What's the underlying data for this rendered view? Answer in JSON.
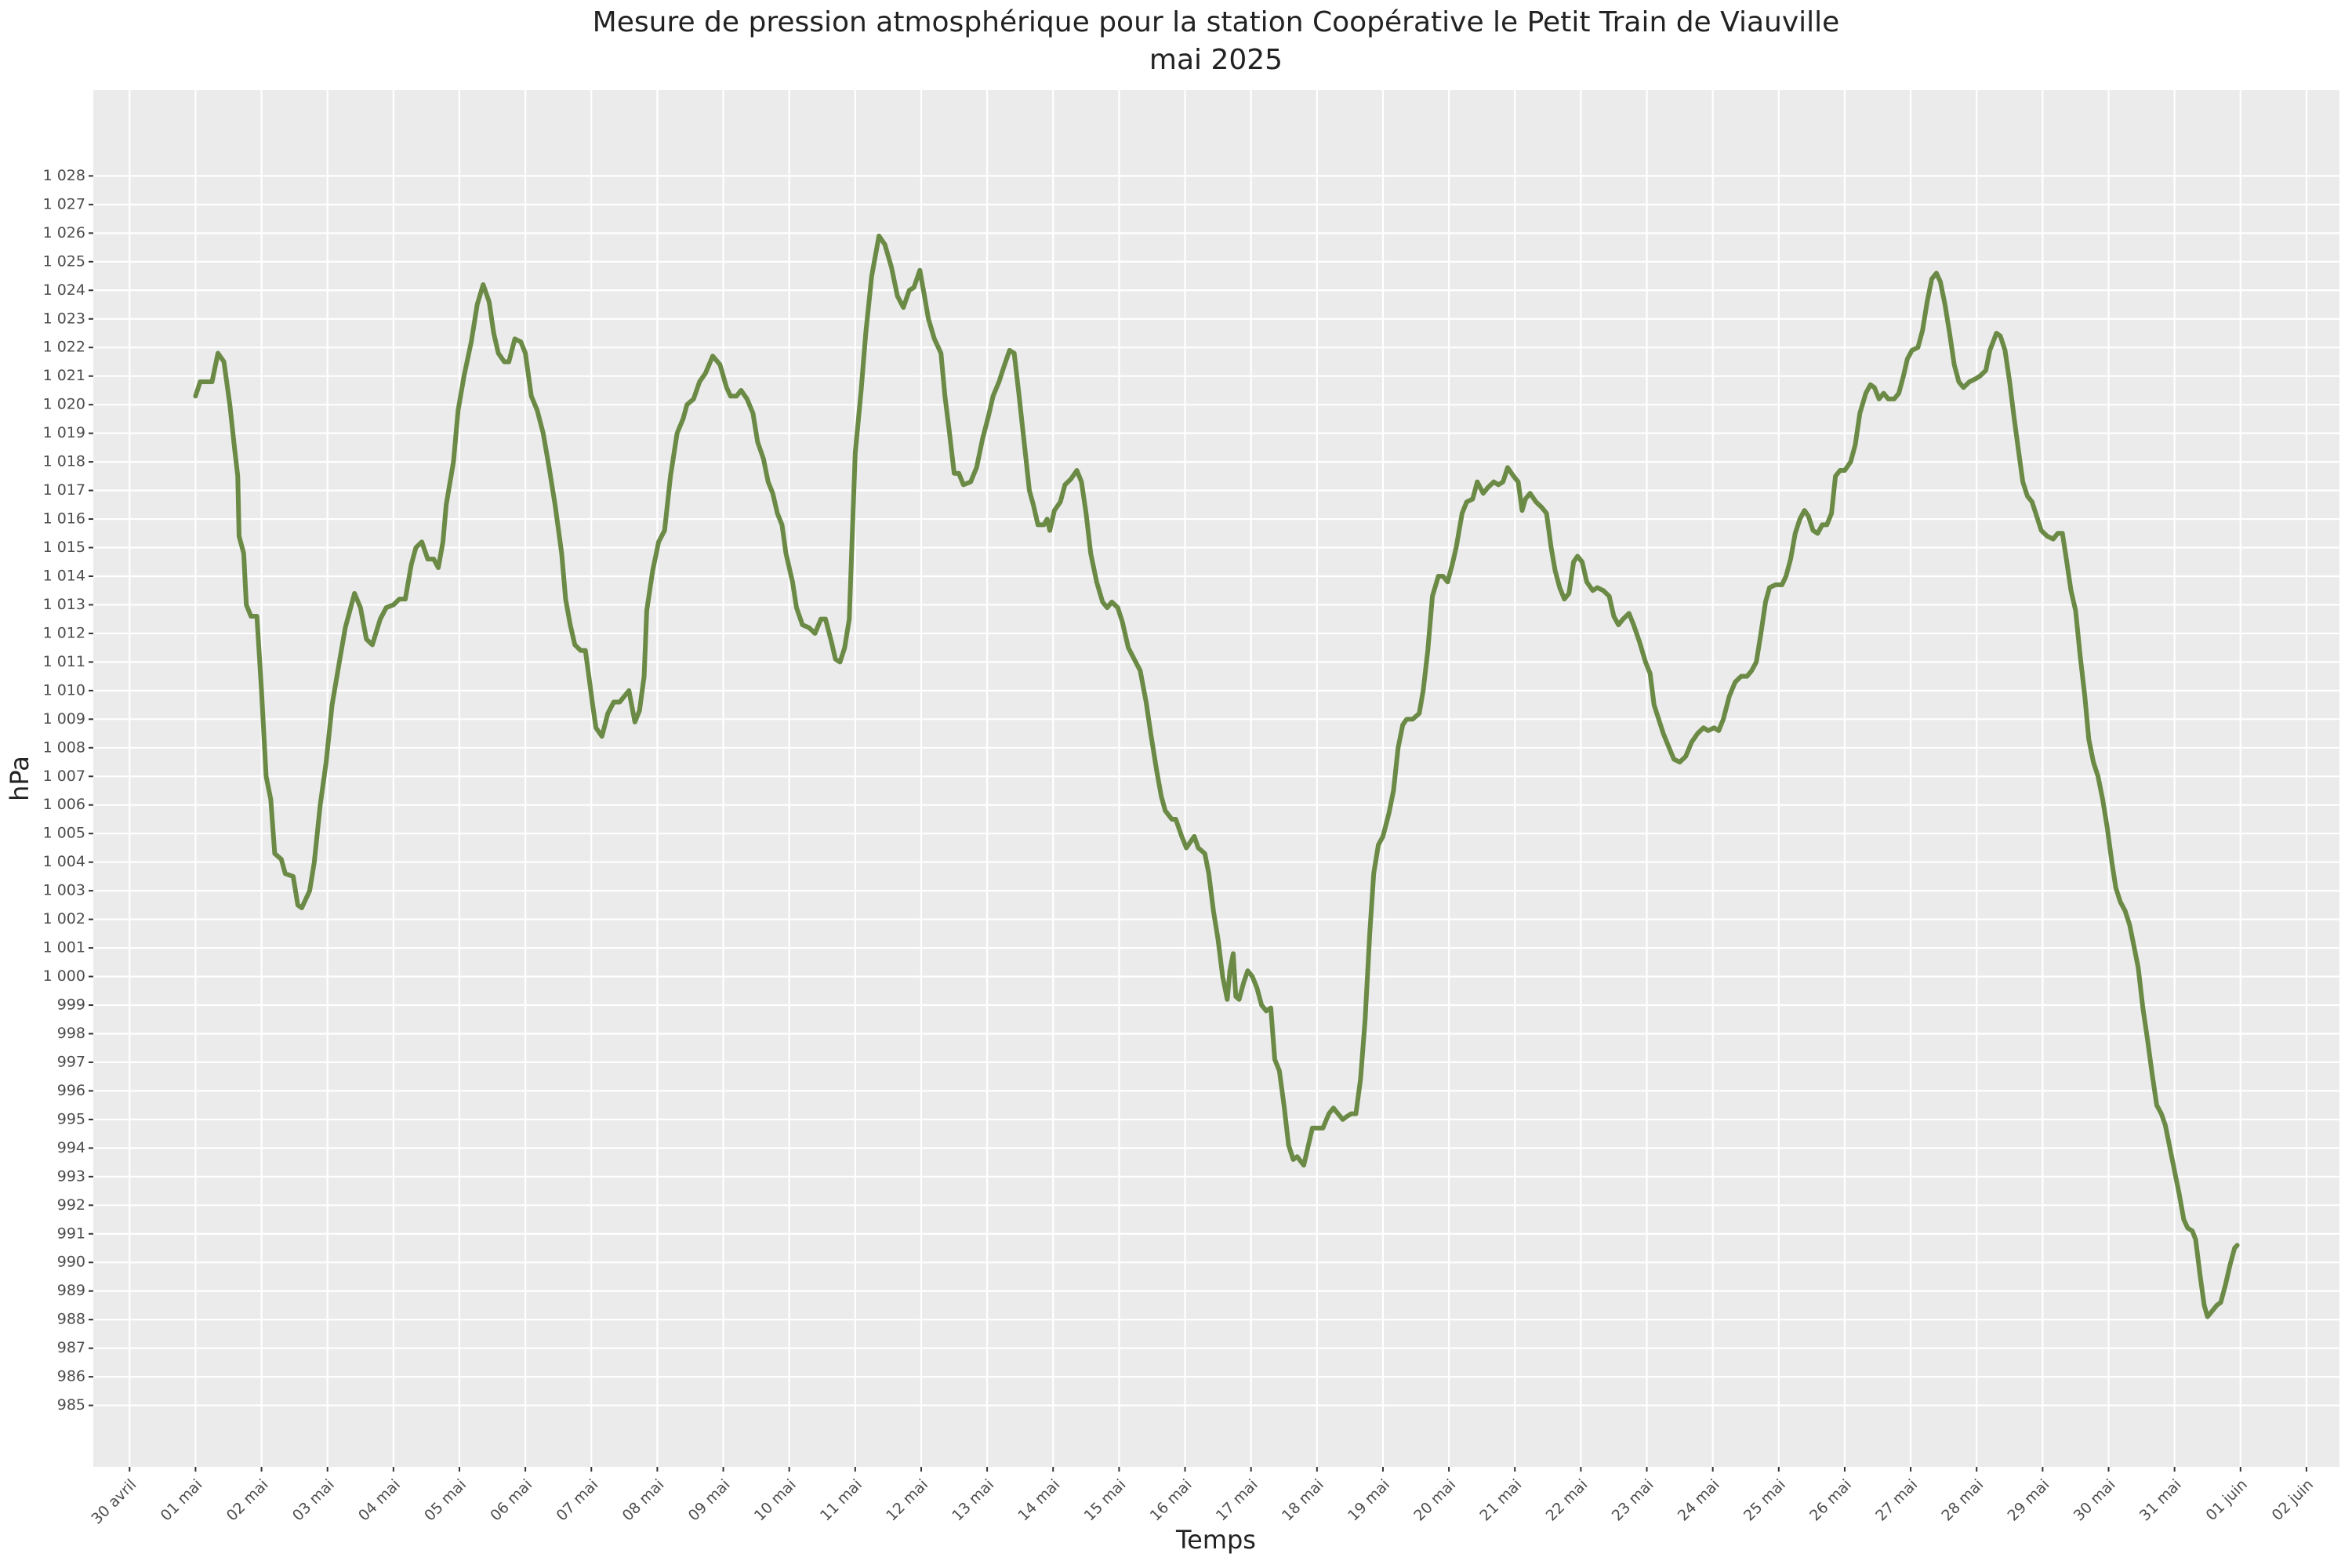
{
  "chart_data": {
    "type": "line",
    "title": "Mesure de pression atmosphérique pour la station Coopérative le Petit Train de Viauville",
    "subtitle": "mai 2025",
    "xlabel": "Temps",
    "ylabel": "hPa",
    "color": "#6b8a45",
    "grid": true,
    "xlim": [
      -1.55,
      32.5
    ],
    "ylim": [
      982.85,
      1031
    ],
    "xticks": [
      {
        "value": -1,
        "label": "30 avril"
      },
      {
        "value": 0,
        "label": "01 mai"
      },
      {
        "value": 1,
        "label": "02 mai"
      },
      {
        "value": 2,
        "label": "03 mai"
      },
      {
        "value": 3,
        "label": "04 mai"
      },
      {
        "value": 4,
        "label": "05 mai"
      },
      {
        "value": 5,
        "label": "06 mai"
      },
      {
        "value": 6,
        "label": "07 mai"
      },
      {
        "value": 7,
        "label": "08 mai"
      },
      {
        "value": 8,
        "label": "09 mai"
      },
      {
        "value": 9,
        "label": "10 mai"
      },
      {
        "value": 10,
        "label": "11 mai"
      },
      {
        "value": 11,
        "label": "12 mai"
      },
      {
        "value": 12,
        "label": "13 mai"
      },
      {
        "value": 13,
        "label": "14 mai"
      },
      {
        "value": 14,
        "label": "15 mai"
      },
      {
        "value": 15,
        "label": "16 mai"
      },
      {
        "value": 16,
        "label": "17 mai"
      },
      {
        "value": 17,
        "label": "18 mai"
      },
      {
        "value": 18,
        "label": "19 mai"
      },
      {
        "value": 19,
        "label": "20 mai"
      },
      {
        "value": 20,
        "label": "21 mai"
      },
      {
        "value": 21,
        "label": "22 mai"
      },
      {
        "value": 22,
        "label": "23 mai"
      },
      {
        "value": 23,
        "label": "24 mai"
      },
      {
        "value": 24,
        "label": "25 mai"
      },
      {
        "value": 25,
        "label": "26 mai"
      },
      {
        "value": 26,
        "label": "27 mai"
      },
      {
        "value": 27,
        "label": "28 mai"
      },
      {
        "value": 28,
        "label": "29 mai"
      },
      {
        "value": 29,
        "label": "30 mai"
      },
      {
        "value": 30,
        "label": "31 mai"
      },
      {
        "value": 31,
        "label": "01 juin"
      },
      {
        "value": 32,
        "label": "02 juin"
      }
    ],
    "yticks": [
      985,
      986,
      987,
      988,
      989,
      990,
      991,
      992,
      993,
      994,
      995,
      996,
      997,
      998,
      999,
      {
        "value": 1000,
        "label": "1 000"
      },
      {
        "value": 1001,
        "label": "1 001"
      },
      {
        "value": 1002,
        "label": "1 002"
      },
      {
        "value": 1003,
        "label": "1 003"
      },
      {
        "value": 1004,
        "label": "1 004"
      },
      {
        "value": 1005,
        "label": "1 005"
      },
      {
        "value": 1006,
        "label": "1 006"
      },
      {
        "value": 1007,
        "label": "1 007"
      },
      {
        "value": 1008,
        "label": "1 008"
      },
      {
        "value": 1009,
        "label": "1 009"
      },
      {
        "value": 1010,
        "label": "1 010"
      },
      {
        "value": 1011,
        "label": "1 011"
      },
      {
        "value": 1012,
        "label": "1 012"
      },
      {
        "value": 1013,
        "label": "1 013"
      },
      {
        "value": 1014,
        "label": "1 014"
      },
      {
        "value": 1015,
        "label": "1 015"
      },
      {
        "value": 1016,
        "label": "1 016"
      },
      {
        "value": 1017,
        "label": "1 017"
      },
      {
        "value": 1018,
        "label": "1 018"
      },
      {
        "value": 1019,
        "label": "1 019"
      },
      {
        "value": 1020,
        "label": "1 020"
      },
      {
        "value": 1021,
        "label": "1 021"
      },
      {
        "value": 1022,
        "label": "1 022"
      },
      {
        "value": 1023,
        "label": "1 023"
      },
      {
        "value": 1024,
        "label": "1 024"
      },
      {
        "value": 1025,
        "label": "1 025"
      },
      {
        "value": 1026,
        "label": "1 026"
      },
      {
        "value": 1027,
        "label": "1 027"
      },
      {
        "value": 1028,
        "label": "1 028"
      }
    ],
    "x": [
      0.0,
      0.07,
      0.25,
      0.34,
      0.43,
      0.52,
      0.59,
      0.64,
      0.66,
      0.73,
      0.77,
      0.84,
      0.93,
      1.0,
      1.07,
      1.14,
      1.2,
      1.3,
      1.36,
      1.48,
      1.55,
      1.61,
      1.73,
      1.8,
      1.89,
      1.98,
      2.07,
      2.18,
      2.27,
      2.41,
      2.5,
      2.59,
      2.68,
      2.8,
      2.89,
      3.0,
      3.09,
      3.18,
      3.27,
      3.34,
      3.43,
      3.52,
      3.61,
      3.68,
      3.75,
      3.8,
      3.91,
      3.98,
      4.07,
      4.18,
      4.27,
      4.36,
      4.45,
      4.52,
      4.59,
      4.68,
      4.75,
      4.84,
      4.93,
      5.0,
      5.09,
      5.18,
      5.27,
      5.36,
      5.45,
      5.55,
      5.61,
      5.68,
      5.75,
      5.84,
      5.91,
      5.98,
      6.02,
      6.07,
      6.16,
      6.25,
      6.34,
      6.43,
      6.5,
      6.57,
      6.66,
      6.73,
      6.8,
      6.84,
      6.93,
      7.02,
      7.11,
      7.2,
      7.3,
      7.39,
      7.45,
      7.55,
      7.64,
      7.73,
      7.84,
      7.95,
      8.05,
      8.11,
      8.2,
      8.27,
      8.36,
      8.45,
      8.52,
      8.61,
      8.68,
      8.75,
      8.82,
      8.89,
      8.95,
      9.05,
      9.11,
      9.2,
      9.3,
      9.39,
      9.48,
      9.55,
      9.64,
      9.7,
      9.77,
      9.84,
      9.91,
      10.0,
      10.09,
      10.16,
      10.25,
      10.36,
      10.45,
      10.55,
      10.64,
      10.73,
      10.82,
      10.89,
      10.98,
      11.05,
      11.11,
      11.2,
      11.3,
      11.36,
      11.43,
      11.5,
      11.57,
      11.64,
      11.75,
      11.84,
      11.93,
      12.02,
      12.09,
      12.18,
      12.25,
      12.34,
      12.41,
      12.48,
      12.57,
      12.64,
      12.7,
      12.77,
      12.86,
      12.91,
      12.95,
      13.02,
      13.11,
      13.18,
      13.27,
      13.36,
      13.43,
      13.5,
      13.57,
      13.66,
      13.75,
      13.82,
      13.89,
      13.98,
      14.05,
      14.14,
      14.23,
      14.32,
      14.41,
      14.48,
      14.57,
      14.64,
      14.7,
      14.8,
      14.86,
      14.95,
      15.02,
      15.14,
      15.2,
      15.3,
      15.36,
      15.43,
      15.5,
      15.57,
      15.64,
      15.68,
      15.73,
      15.77,
      15.82,
      15.89,
      15.95,
      16.02,
      16.09,
      16.16,
      16.23,
      16.3,
      16.36,
      16.43,
      16.5,
      16.57,
      16.64,
      16.7,
      16.8,
      16.86,
      16.93,
      17.02,
      17.09,
      17.18,
      17.25,
      17.32,
      17.39,
      17.45,
      17.52,
      17.59,
      17.66,
      17.73,
      17.8,
      17.86,
      17.93,
      18.0,
      18.09,
      18.16,
      18.23,
      18.3,
      18.36,
      18.45,
      18.55,
      18.61,
      18.68,
      18.75,
      18.84,
      18.91,
      18.98,
      19.05,
      19.11,
      19.2,
      19.27,
      19.36,
      19.43,
      19.52,
      19.59,
      19.68,
      19.75,
      19.82,
      19.89,
      19.98,
      20.05,
      20.11,
      20.16,
      20.23,
      20.32,
      20.41,
      20.48,
      20.55,
      20.61,
      20.68,
      20.75,
      20.82,
      20.89,
      20.95,
      21.02,
      21.09,
      21.18,
      21.25,
      21.34,
      21.43,
      21.5,
      21.57,
      21.64,
      21.73,
      21.8,
      21.89,
      21.98,
      22.05,
      22.11,
      22.18,
      22.25,
      22.32,
      22.41,
      22.5,
      22.59,
      22.68,
      22.77,
      22.86,
      22.93,
      23.02,
      23.09,
      23.16,
      23.25,
      23.34,
      23.43,
      23.52,
      23.59,
      23.66,
      23.73,
      23.8,
      23.86,
      23.95,
      24.05,
      24.11,
      24.18,
      24.25,
      24.32,
      24.39,
      24.45,
      24.52,
      24.59,
      24.66,
      24.73,
      24.8,
      24.86,
      24.93,
      25.0,
      25.09,
      25.16,
      25.23,
      25.32,
      25.39,
      25.45,
      25.52,
      25.59,
      25.66,
      25.75,
      25.82,
      25.89,
      25.95,
      26.02,
      26.11,
      26.18,
      26.25,
      26.32,
      26.39,
      26.45,
      26.52,
      26.59,
      26.66,
      26.73,
      26.8,
      26.89,
      26.98,
      27.05,
      27.14,
      27.2,
      27.3,
      27.36,
      27.43,
      27.5,
      27.57,
      27.64,
      27.7,
      27.77,
      27.84,
      27.91,
      27.98,
      28.07,
      28.16,
      28.23,
      28.3,
      28.36,
      28.43,
      28.5,
      28.57,
      28.64,
      28.7,
      28.77,
      28.84,
      28.91,
      28.98,
      29.05,
      29.11,
      29.18,
      29.25,
      29.32,
      29.39,
      29.45,
      29.52,
      29.59,
      29.66,
      29.73,
      29.8,
      29.86,
      29.93,
      30.0,
      30.07,
      30.14,
      30.2,
      30.27,
      30.32,
      30.39,
      30.45,
      30.5,
      30.57,
      30.64,
      30.7,
      30.77,
      30.84,
      30.91,
      30.95
    ],
    "values": [
      1020.3,
      1020.8,
      1020.8,
      1021.8,
      1021.5,
      1020,
      1018.5,
      1017.5,
      1015.4,
      1014.8,
      1013,
      1012.6,
      1012.6,
      1010,
      1007,
      1006.2,
      1004.3,
      1004.1,
      1003.6,
      1003.5,
      1002.5,
      1002.4,
      1003,
      1004,
      1006,
      1007.5,
      1009.5,
      1011,
      1012.2,
      1013.4,
      1012.9,
      1011.8,
      1011.6,
      1012.5,
      1012.9,
      1013,
      1013.2,
      1013.2,
      1014.4,
      1015,
      1015.2,
      1014.6,
      1014.6,
      1014.3,
      1015.2,
      1016.5,
      1018,
      1019.8,
      1021,
      1022.2,
      1023.5,
      1024.2,
      1023.6,
      1022.5,
      1021.8,
      1021.5,
      1021.5,
      1022.3,
      1022.2,
      1021.8,
      1020.3,
      1019.8,
      1019,
      1017.8,
      1016.5,
      1014.8,
      1013.2,
      1012.3,
      1011.6,
      1011.4,
      1011.4,
      1010.2,
      1009.5,
      1008.7,
      1008.4,
      1009.2,
      1009.6,
      1009.6,
      1009.8,
      1010,
      1008.9,
      1009.3,
      1010.5,
      1012.8,
      1014.2,
      1015.2,
      1015.6,
      1017.5,
      1019,
      1019.5,
      1020,
      1020.2,
      1020.8,
      1021.1,
      1021.7,
      1021.4,
      1020.6,
      1020.3,
      1020.3,
      1020.5,
      1020.2,
      1019.7,
      1018.7,
      1018.1,
      1017.3,
      1016.9,
      1016.2,
      1015.8,
      1014.8,
      1013.8,
      1012.9,
      1012.3,
      1012.2,
      1012,
      1012.5,
      1012.5,
      1011.7,
      1011.1,
      1011,
      1011.5,
      1012.5,
      1018.3,
      1020.5,
      1022.5,
      1024.5,
      1025.9,
      1025.6,
      1024.8,
      1023.8,
      1023.4,
      1024,
      1024.1,
      1024.7,
      1023.8,
      1023,
      1022.3,
      1021.8,
      1020.3,
      1019,
      1017.6,
      1017.6,
      1017.2,
      1017.3,
      1017.8,
      1018.8,
      1019.6,
      1020.3,
      1020.8,
      1021.3,
      1021.9,
      1021.8,
      1020.4,
      1018.5,
      1017,
      1016.5,
      1015.8,
      1015.8,
      1016,
      1015.6,
      1016.3,
      1016.6,
      1017.2,
      1017.4,
      1017.7,
      1017.3,
      1016.2,
      1014.8,
      1013.8,
      1013.1,
      1012.9,
      1013.1,
      1012.9,
      1012.4,
      1011.5,
      1011.1,
      1010.7,
      1009.6,
      1008.5,
      1007.2,
      1006.3,
      1005.8,
      1005.5,
      1005.5,
      1004.9,
      1004.5,
      1004.9,
      1004.5,
      1004.3,
      1003.6,
      1002.3,
      1001.3,
      1000,
      999.2,
      1000.2,
      1000.8,
      999.3,
      999.2,
      999.8,
      1000.2,
      1000,
      999.6,
      999,
      998.8,
      998.9,
      997.1,
      996.7,
      995.5,
      994.1,
      993.6,
      993.7,
      993.4,
      994,
      994.7,
      994.7,
      994.7,
      995.2,
      995.4,
      995.2,
      995,
      995.1,
      995.2,
      995.2,
      996.4,
      998.5,
      1001.5,
      1003.6,
      1004.6,
      1004.9,
      1005.7,
      1006.5,
      1008,
      1008.8,
      1009,
      1009,
      1009.2,
      1010,
      1011.4,
      1013.3,
      1014,
      1014,
      1013.8,
      1014.4,
      1015,
      1016.2,
      1016.6,
      1016.7,
      1017.3,
      1016.9,
      1017.1,
      1017.3,
      1017.2,
      1017.3,
      1017.8,
      1017.5,
      1017.3,
      1016.3,
      1016.7,
      1016.9,
      1016.6,
      1016.4,
      1016.2,
      1015,
      1014.2,
      1013.6,
      1013.2,
      1013.4,
      1014.5,
      1014.7,
      1014.5,
      1013.8,
      1013.5,
      1013.6,
      1013.5,
      1013.3,
      1012.6,
      1012.3,
      1012.5,
      1012.7,
      1012.3,
      1011.7,
      1011,
      1010.6,
      1009.5,
      1009,
      1008.5,
      1008.1,
      1007.6,
      1007.5,
      1007.7,
      1008.2,
      1008.5,
      1008.7,
      1008.6,
      1008.7,
      1008.6,
      1009,
      1009.8,
      1010.3,
      1010.5,
      1010.5,
      1010.7,
      1011,
      1012,
      1013.1,
      1013.6,
      1013.7,
      1013.7,
      1014,
      1014.6,
      1015.5,
      1016,
      1016.3,
      1016.1,
      1015.6,
      1015.5,
      1015.8,
      1015.8,
      1016.2,
      1017.5,
      1017.7,
      1017.7,
      1018,
      1018.6,
      1019.7,
      1020.4,
      1020.7,
      1020.6,
      1020.2,
      1020.4,
      1020.2,
      1020.2,
      1020.4,
      1021,
      1021.6,
      1021.9,
      1022,
      1022.6,
      1023.6,
      1024.4,
      1024.6,
      1024.3,
      1023.5,
      1022.5,
      1021.4,
      1020.8,
      1020.6,
      1020.8,
      1020.9,
      1021,
      1021.2,
      1021.9,
      1022.5,
      1022.4,
      1021.9,
      1020.8,
      1019.5,
      1018.3,
      1017.3,
      1016.8,
      1016.6,
      1016.1,
      1015.6,
      1015.4,
      1015.3,
      1015.5,
      1015.5,
      1014.6,
      1013.5,
      1012.8,
      1011.2,
      1009.8,
      1008.3,
      1007.5,
      1007,
      1006.2,
      1005.2,
      1004,
      1003.1,
      1002.6,
      1002.3,
      1001.8,
      1001,
      1000.3,
      998.9,
      997.8,
      996.6,
      995.5,
      995.2,
      994.8,
      994,
      993.2,
      992.4,
      991.5,
      991.2,
      991.1,
      990.8,
      989.5,
      988.5,
      988.1,
      988.3,
      988.5,
      988.6,
      989.2,
      989.9,
      990.5,
      990.6
    ]
  }
}
